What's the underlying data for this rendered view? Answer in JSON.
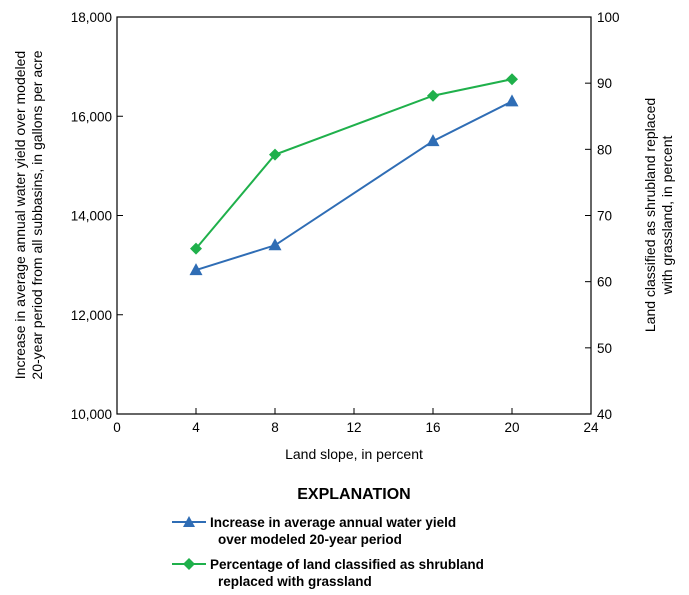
{
  "chart_data": {
    "type": "line",
    "x": [
      4,
      8,
      16,
      20
    ],
    "xlabel": "Land slope, in percent",
    "xlim": [
      0,
      24
    ],
    "xticks": [
      0,
      4,
      8,
      12,
      16,
      20,
      24
    ],
    "xtick_labels": [
      "0",
      "4",
      "8",
      "12",
      "16",
      "20",
      "24"
    ],
    "ylabel_left": [
      "Increase in average annual water yield over modeled",
      "20-year period from all subbasins, in gallons per acre"
    ],
    "ylim_left": [
      10000,
      18000
    ],
    "yticks_left": [
      10000,
      12000,
      14000,
      16000,
      18000
    ],
    "ytick_labels_left": [
      "10,000",
      "12,000",
      "14,000",
      "16,000",
      "18,000"
    ],
    "ylabel_right": [
      "Land classified as shrubland replaced",
      "with grassland, in percent"
    ],
    "ylim_right": [
      40,
      100
    ],
    "yticks_right": [
      40,
      50,
      60,
      70,
      80,
      90,
      100
    ],
    "ytick_labels_right": [
      "40",
      "50",
      "60",
      "70",
      "80",
      "90",
      "100"
    ],
    "grid": false,
    "series": [
      {
        "axis": "left",
        "marker": "triangle",
        "color": "#2f6db5",
        "values": [
          12900,
          13400,
          15500,
          16300
        ],
        "legend_lines": [
          "Increase in average annual water yield",
          "over modeled 20-year period"
        ]
      },
      {
        "axis": "right",
        "marker": "diamond",
        "color": "#1fb04b",
        "values": [
          65,
          79.2,
          88.1,
          90.6
        ],
        "legend_lines": [
          "Percentage of land classified as shrubland",
          "replaced with grassland"
        ]
      }
    ],
    "legend_title": "EXPLANATION",
    "legend_position": "below"
  }
}
